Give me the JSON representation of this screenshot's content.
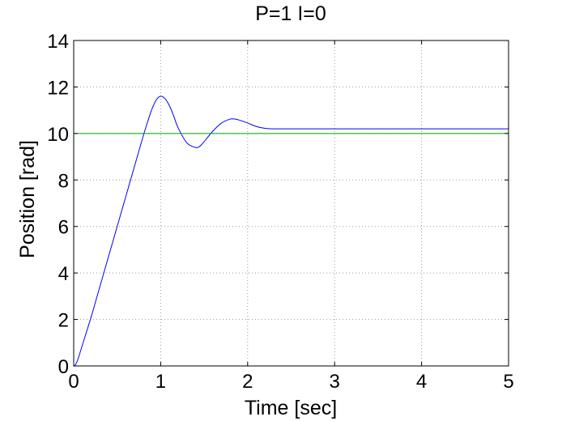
{
  "chart_data": {
    "type": "line",
    "title": "P=1 I=0",
    "xlabel": "Time [sec]",
    "ylabel": "Position [rad]",
    "xlim": [
      0,
      5
    ],
    "ylim": [
      0,
      14
    ],
    "x_ticks": [
      "0",
      "1",
      "2",
      "3",
      "4",
      "5"
    ],
    "y_ticks": [
      "0",
      "2",
      "4",
      "6",
      "8",
      "10",
      "12",
      "14"
    ],
    "grid": true,
    "legend": "none",
    "series": [
      {
        "color": "#0000ff",
        "x": [
          0,
          0.02,
          0.05,
          0.1,
          0.2,
          0.3,
          0.4,
          0.5,
          0.6,
          0.7,
          0.8,
          0.85,
          0.9,
          0.95,
          1.0,
          1.05,
          1.1,
          1.15,
          1.2,
          1.3,
          1.4,
          1.45,
          1.5,
          1.6,
          1.7,
          1.8,
          1.85,
          1.9,
          2.0,
          2.1,
          2.2,
          2.3,
          2.5,
          3.0,
          3.5,
          4.0,
          4.5,
          5.0
        ],
        "y": [
          0,
          0.05,
          0.3,
          0.9,
          2.1,
          3.4,
          4.7,
          6.0,
          7.3,
          8.6,
          9.9,
          10.5,
          11.05,
          11.45,
          11.6,
          11.5,
          11.2,
          10.75,
          10.25,
          9.6,
          9.4,
          9.45,
          9.65,
          10.1,
          10.45,
          10.62,
          10.62,
          10.58,
          10.45,
          10.3,
          10.22,
          10.2,
          10.2,
          10.2,
          10.2,
          10.2,
          10.2,
          10.2
        ]
      },
      {
        "color": "#00a000",
        "x": [
          0,
          5
        ],
        "y": [
          10,
          10
        ]
      }
    ]
  }
}
